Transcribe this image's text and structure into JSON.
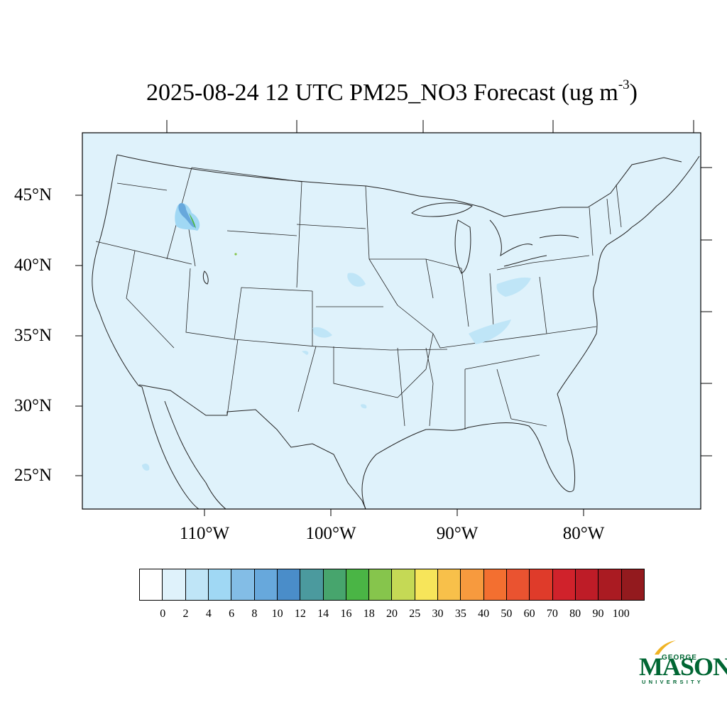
{
  "title": {
    "main": "2025-08-24 12 UTC PM25_NO3 Forecast (ug m",
    "superscript": "-3",
    "close": ")"
  },
  "map": {
    "background_color": "#DFF2FB",
    "border_color": "#222222",
    "lat_labels": [
      "45°N",
      "40°N",
      "35°N",
      "30°N",
      "25°N"
    ],
    "lon_labels": [
      "110°W",
      "100°W",
      "90°W",
      "80°W"
    ]
  },
  "colorbar": {
    "colors": [
      "#FFFFFF",
      "#DFF2FB",
      "#BFE5F7",
      "#A0D8F4",
      "#83BDE6",
      "#67A8DC",
      "#4A8DC9",
      "#4B9A9E",
      "#47A56D",
      "#4AB545",
      "#86C54C",
      "#C5D955",
      "#F7E55A",
      "#F8C04A",
      "#F79A3E",
      "#F36F30",
      "#EA5330",
      "#DF3B2A",
      "#D0222B",
      "#BE1C27",
      "#AA1B22",
      "#931A1E"
    ],
    "labels": [
      "0",
      "2",
      "4",
      "6",
      "8",
      "10",
      "12",
      "14",
      "16",
      "18",
      "20",
      "25",
      "30",
      "35",
      "40",
      "50",
      "60",
      "70",
      "80",
      "90",
      "100"
    ]
  },
  "logo": {
    "line1": "GEORGE",
    "line2": "MASON",
    "line3": "UNIVERSITY",
    "color": "#006633",
    "accent": "#F0B323"
  }
}
